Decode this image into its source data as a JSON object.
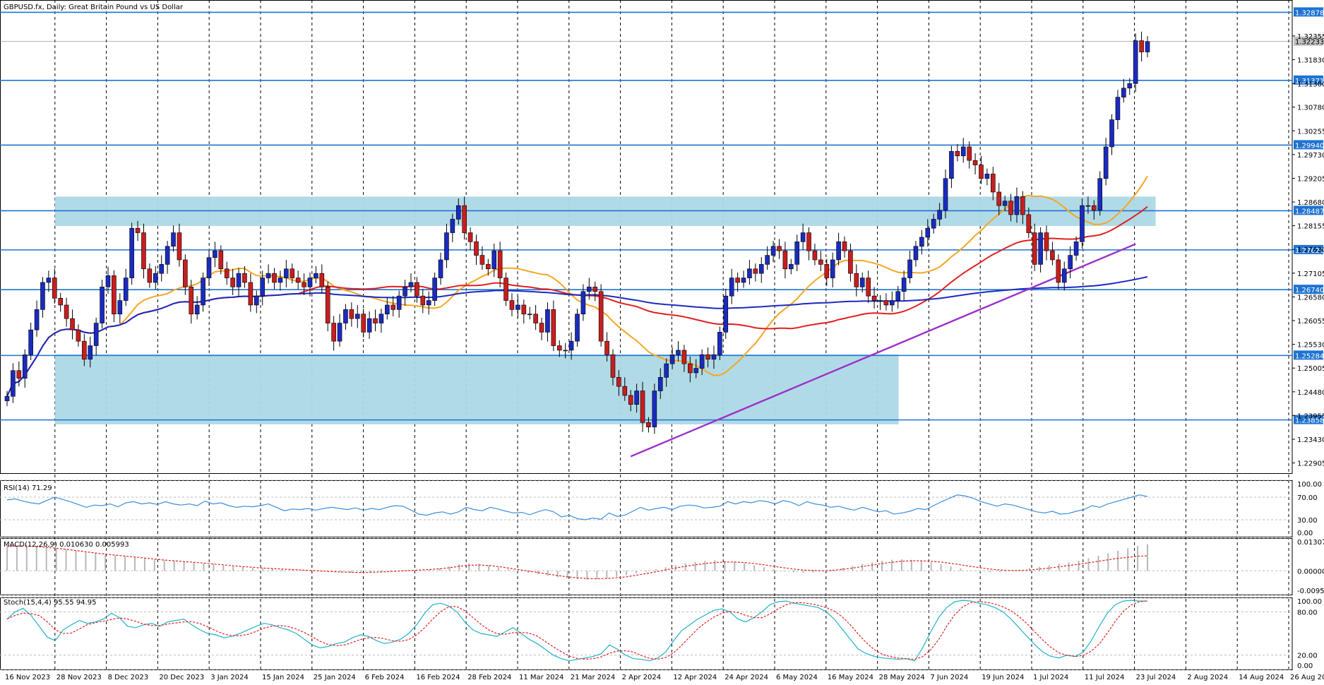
{
  "header": {
    "title": "GBPUSD.fx, Daily:  Great Britain Pound vs US Dollar"
  },
  "colors": {
    "background": "#ffffff",
    "grid": "#000000",
    "bull_candle": "#1a2bbf",
    "bear_candle": "#c81e1e",
    "level_line": "#1e73d2",
    "zone_fill": "#add8e6",
    "sma_fast": "#f5a623",
    "sma_mid": "#e02020",
    "sma_slow": "#1a2bbf",
    "trendline": "#9b30c8",
    "rsi_line": "#3a8fdc",
    "macd_hist": "#b8b8b8",
    "macd_signal": "#e02020",
    "stoch_main": "#20b2c8",
    "stoch_signal": "#e02020"
  },
  "chart_data": {
    "type": "candlestick",
    "symbol": "GBPUSD.fx",
    "timeframe": "Daily",
    "ylim": [
      1.2268,
      1.3315
    ],
    "current_price": "1.32233",
    "price_axis_ticks": [
      "1.32355",
      "1.31830",
      "1.31300",
      "1.30780",
      "1.30255",
      "1.29730",
      "1.29205",
      "1.28680",
      "1.28155",
      "1.27630",
      "1.27105",
      "1.26580",
      "1.26055",
      "1.25530",
      "1.25005",
      "1.24480",
      "1.23955",
      "1.23430",
      "1.22905"
    ],
    "level_lines": [
      {
        "label": "1.32878",
        "value": 1.32878
      },
      {
        "label": "1.31371",
        "value": 1.31371
      },
      {
        "label": "1.29940",
        "value": 1.2994
      },
      {
        "label": "1.28487",
        "value": 1.28487
      },
      {
        "label": "1.27620",
        "value": 1.2762
      },
      {
        "label": "1.26740",
        "value": 1.2674
      },
      {
        "label": "1.25284",
        "value": 1.25284
      },
      {
        "label": "1.23858",
        "value": 1.23858
      }
    ],
    "zones": [
      {
        "from": "28 Nov 2023",
        "to": "23 Jul 2024",
        "low": 1.2815,
        "high": 1.288
      },
      {
        "from": "28 Nov 2023",
        "to": "28 May 2024",
        "low": 1.2376,
        "high": 1.2531
      }
    ],
    "x_dates": [
      "16 Nov 2023",
      "28 Nov 2023",
      "8 Dec 2023",
      "20 Dec 2023",
      "3 Jan 2024",
      "15 Jan 2024",
      "25 Jan 2024",
      "6 Feb 2024",
      "16 Feb 2024",
      "28 Feb 2024",
      "11 Mar 2024",
      "21 Mar 2024",
      "2 Apr 2024",
      "12 Apr 2024",
      "24 Apr 2024",
      "6 May 2024",
      "16 May 2024",
      "28 May 2024",
      "7 Jun 2024",
      "19 Jun 2024",
      "1 Jul 2024",
      "11 Jul 2024",
      "23 Jul 2024",
      "2 Aug 2024",
      "14 Aug 2024",
      "26 Aug 2024"
    ],
    "candles_close": [
      1.2438,
      1.2495,
      1.2478,
      1.253,
      1.2585,
      1.263,
      1.269,
      1.27,
      1.2655,
      1.264,
      1.261,
      1.2585,
      1.256,
      1.252,
      1.255,
      1.26,
      1.268,
      1.2705,
      1.262,
      1.265,
      1.27,
      1.281,
      1.28,
      1.272,
      1.269,
      1.271,
      1.273,
      1.277,
      1.28,
      1.274,
      1.268,
      1.262,
      1.264,
      1.27,
      1.2745,
      1.276,
      1.272,
      1.27,
      1.268,
      1.271,
      1.269,
      1.264,
      1.266,
      1.27,
      1.271,
      1.269,
      1.27,
      1.272,
      1.27,
      1.269,
      1.268,
      1.27,
      1.271,
      1.268,
      1.26,
      1.256,
      1.26,
      1.263,
      1.261,
      1.262,
      1.258,
      1.261,
      1.26,
      1.262,
      1.264,
      1.263,
      1.266,
      1.268,
      1.269,
      1.266,
      1.264,
      1.265,
      1.27,
      1.274,
      1.28,
      1.283,
      1.286,
      1.28,
      1.278,
      1.275,
      1.273,
      1.272,
      1.276,
      1.27,
      1.265,
      1.263,
      1.264,
      1.262,
      1.262,
      1.26,
      1.258,
      1.263,
      1.255,
      1.254,
      1.254,
      1.256,
      1.262,
      1.267,
      1.268,
      1.267,
      1.256,
      1.253,
      1.248,
      1.246,
      1.244,
      1.242,
      1.245,
      1.238,
      1.237,
      1.245,
      1.248,
      1.251,
      1.253,
      1.254,
      1.251,
      1.249,
      1.25,
      1.253,
      1.252,
      1.253,
      1.258,
      1.266,
      1.27,
      1.269,
      1.27,
      1.272,
      1.271,
      1.273,
      1.275,
      1.277,
      1.276,
      1.272,
      1.273,
      1.278,
      1.28,
      1.276,
      1.274,
      1.273,
      1.27,
      1.274,
      1.278,
      1.276,
      1.271,
      1.268,
      1.27,
      1.266,
      1.265,
      1.265,
      1.264,
      1.265,
      1.267,
      1.27,
      1.274,
      1.277,
      1.279,
      1.281,
      1.283,
      1.285,
      1.292,
      1.298,
      1.297,
      1.299,
      1.296,
      1.295,
      1.292,
      1.293,
      1.289,
      1.286,
      1.287,
      1.284,
      1.288,
      1.284,
      1.28,
      1.273,
      1.28,
      1.276,
      1.274,
      1.269,
      1.272,
      1.275,
      1.278,
      1.286,
      1.286,
      1.285,
      1.292,
      1.299,
      1.305,
      1.31,
      1.312,
      1.313,
      1.3225,
      1.32,
      1.3223
    ]
  },
  "rsi": {
    "title": "RSI(14) 71.29",
    "levels": [
      "100.00",
      "70.00",
      "30.00",
      "0.00"
    ],
    "values": [
      65,
      67,
      63,
      60,
      58,
      64,
      70,
      66,
      62,
      57,
      52,
      56,
      55,
      58,
      53,
      60,
      62,
      58,
      60,
      57,
      62,
      58,
      56,
      58,
      55,
      63,
      58,
      60,
      55,
      52,
      54,
      53,
      55,
      58,
      52,
      46,
      49,
      48,
      50,
      47,
      50,
      52,
      50,
      48,
      51,
      47,
      50,
      48,
      52,
      55,
      54,
      47,
      40,
      38,
      42,
      44,
      40,
      44,
      52,
      48,
      46,
      52,
      49,
      45,
      42,
      43,
      39,
      44,
      48,
      44,
      35,
      38,
      32,
      30,
      33,
      31,
      42,
      36,
      38,
      45,
      52,
      47,
      50,
      52,
      48,
      54,
      56,
      55,
      51,
      52,
      54,
      62,
      58,
      62,
      60,
      64,
      62,
      58,
      64,
      61,
      55,
      62,
      58,
      56,
      52,
      54,
      50,
      47,
      52,
      48,
      44,
      46,
      40,
      42,
      45,
      50,
      48,
      55,
      62,
      68,
      74,
      72,
      68,
      62,
      58,
      54,
      58,
      56,
      52,
      48,
      44,
      42,
      45,
      40,
      41,
      45,
      48,
      55,
      52,
      58,
      62,
      66,
      70,
      74,
      71
    ]
  },
  "macd": {
    "title": "MACD(12,26,9) 0.010630 0.005993",
    "levels": [
      "0.013077",
      "0.000000",
      "-0.009534"
    ],
    "hist": [
      0.0095,
      0.0098,
      0.0099,
      0.0097,
      0.0094,
      0.009,
      0.0086,
      0.008,
      0.0074,
      0.007,
      0.0066,
      0.0062,
      0.0058,
      0.0055,
      0.005,
      0.0046,
      0.0042,
      0.004,
      0.0038,
      0.0035,
      0.003,
      0.0026,
      0.0022,
      0.0018,
      0.0015,
      0.0012,
      0.001,
      0.0008,
      0.0006,
      0.0004,
      0.0002,
      0.0,
      -0.0002,
      -0.0004,
      -0.0006,
      -0.0008,
      -0.0008,
      -0.0006,
      -0.0004,
      -0.0002,
      0.0,
      0.0002,
      0.0004,
      0.0006,
      0.001,
      0.0018,
      0.0026,
      0.003,
      0.0028,
      0.0022,
      0.0014,
      0.0006,
      -0.0002,
      -0.0008,
      -0.0014,
      -0.002,
      -0.0026,
      -0.003,
      -0.0034,
      -0.0036,
      -0.0034,
      -0.003,
      -0.0024,
      -0.0018,
      -0.001,
      -0.0002,
      0.0006,
      0.0014,
      0.0022,
      0.003,
      0.0036,
      0.004,
      0.0042,
      0.004,
      0.0036,
      0.003,
      0.0022,
      0.0014,
      0.0006,
      -0.0002,
      -0.0006,
      -0.0008,
      -0.0006,
      -0.0002,
      0.0004,
      0.0012,
      0.002,
      0.0028,
      0.0034,
      0.004,
      0.0044,
      0.0046,
      0.0044,
      0.004,
      0.0034,
      0.0026,
      0.0018,
      0.001,
      0.0002,
      -0.0004,
      -0.0006,
      -0.0004,
      0.0,
      0.0004,
      0.001,
      0.0016,
      0.0022,
      0.0028,
      0.0034,
      0.004,
      0.005,
      0.006,
      0.007,
      0.008,
      0.009,
      0.01,
      0.0106
    ],
    "signal": [
      0.0098,
      0.0099,
      0.0099,
      0.0097,
      0.0094,
      0.009,
      0.0086,
      0.0081,
      0.0076,
      0.0071,
      0.0067,
      0.0063,
      0.0059,
      0.0055,
      0.0051,
      0.0047,
      0.0043,
      0.004,
      0.0037,
      0.0034,
      0.0031,
      0.0027,
      0.0024,
      0.002,
      0.0017,
      0.0014,
      0.0011,
      0.0009,
      0.0007,
      0.0005,
      0.0003,
      0.0001,
      -0.0001,
      -0.0003,
      -0.0005,
      -0.0006,
      -0.0007,
      -0.0006,
      -0.0005,
      -0.0003,
      -0.0001,
      0.0001,
      0.0003,
      0.0005,
      0.0008,
      0.0012,
      0.0018,
      0.0022,
      0.0023,
      0.0021,
      0.0017,
      0.0011,
      0.0005,
      -0.0001,
      -0.0007,
      -0.0013,
      -0.0019,
      -0.0024,
      -0.0028,
      -0.0031,
      -0.0032,
      -0.0031,
      -0.0028,
      -0.0024,
      -0.0018,
      -0.0011,
      -0.0004,
      0.0004,
      0.0011,
      0.0018,
      0.0024,
      0.0029,
      0.0033,
      0.0035,
      0.0035,
      0.0033,
      0.0029,
      0.0024,
      0.0018,
      0.0012,
      0.0007,
      0.0003,
      0.0001,
      0.0,
      0.0002,
      0.0006,
      0.0011,
      0.0017,
      0.0023,
      0.0029,
      0.0034,
      0.0038,
      0.004,
      0.004,
      0.0038,
      0.0035,
      0.003,
      0.0024,
      0.0018,
      0.0012,
      0.0007,
      0.0003,
      0.0001,
      0.0001,
      0.0003,
      0.0007,
      0.0011,
      0.0016,
      0.0021,
      0.0026,
      0.0032,
      0.0038,
      0.0044,
      0.005,
      0.0054,
      0.0058,
      0.006
    ]
  },
  "stoch": {
    "title": "Stoch(15,4,4) 95.55 94.95",
    "levels": [
      "100.00",
      "80.00",
      "20.00",
      "0.00"
    ],
    "main": [
      70,
      80,
      85,
      75,
      60,
      45,
      40,
      55,
      62,
      68,
      64,
      66,
      70,
      78,
      72,
      60,
      58,
      62,
      64,
      60,
      66,
      68,
      70,
      62,
      55,
      50,
      48,
      44,
      46,
      50,
      55,
      60,
      64,
      62,
      58,
      55,
      50,
      42,
      34,
      30,
      32,
      36,
      38,
      44,
      48,
      46,
      40,
      36,
      38,
      42,
      50,
      62,
      78,
      90,
      92,
      88,
      80,
      66,
      55,
      50,
      48,
      46,
      52,
      58,
      50,
      42,
      36,
      28,
      20,
      15,
      12,
      14,
      16,
      18,
      22,
      34,
      28,
      20,
      15,
      14,
      12,
      16,
      24,
      40,
      54,
      62,
      70,
      76,
      82,
      84,
      80,
      70,
      66,
      72,
      80,
      90,
      94,
      95,
      92,
      90,
      88,
      86,
      80,
      70,
      56,
      42,
      28,
      22,
      18,
      16,
      15,
      14,
      15,
      12,
      30,
      52,
      72,
      86,
      94,
      96,
      95,
      92,
      90,
      86,
      80,
      70,
      58,
      46,
      34,
      24,
      18,
      16,
      20,
      18,
      24,
      40,
      60,
      78,
      90,
      95,
      96,
      95,
      95
    ]
  }
}
